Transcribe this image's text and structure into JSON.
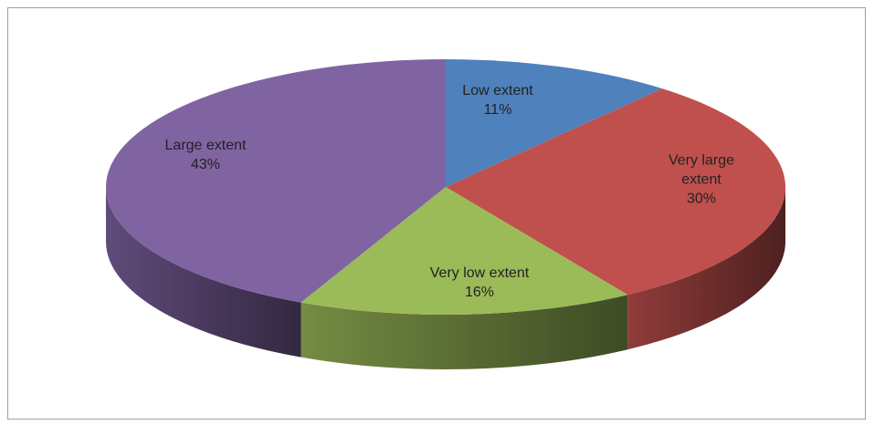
{
  "chart_data": {
    "type": "pie",
    "categories": [
      "Low extent",
      "Very large extent",
      "Very low extent",
      "Large extent"
    ],
    "values": [
      11,
      30,
      16,
      43
    ],
    "value_labels": [
      "11%",
      "30%",
      "16%",
      "43%"
    ],
    "colors": [
      "#4f81bd",
      "#c0504d",
      "#9bbb59",
      "#8064a2"
    ]
  }
}
